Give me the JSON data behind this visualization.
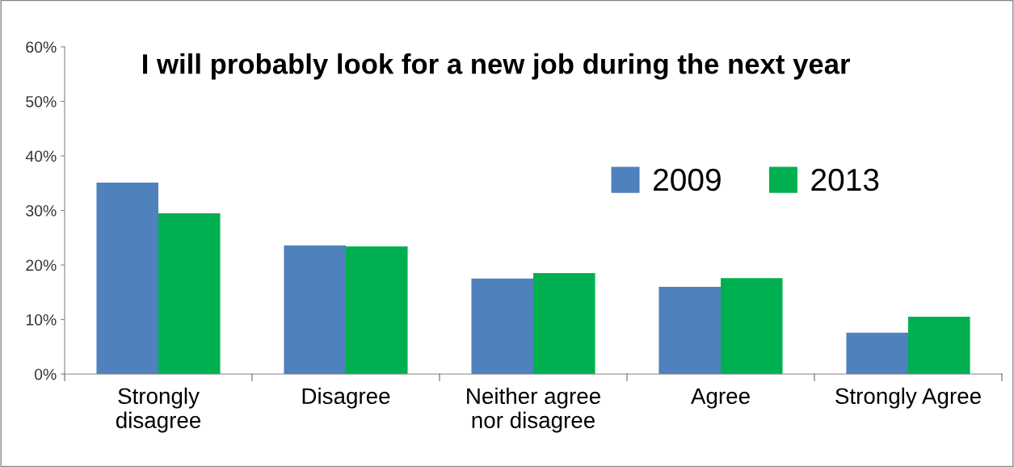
{
  "chart_data": {
    "type": "bar",
    "title": "I will probably look for a new job during the next year",
    "categories": [
      "Strongly\ndisagree",
      "Disagree",
      "Neither agree\nnor disagree",
      "Agree",
      "Strongly Agree"
    ],
    "series": [
      {
        "name": "2009",
        "color": "#4f81bd",
        "values": [
          35.1,
          23.6,
          17.5,
          16.0,
          7.6
        ]
      },
      {
        "name": "2013",
        "color": "#00b050",
        "values": [
          29.5,
          23.4,
          18.5,
          17.6,
          10.5
        ]
      }
    ],
    "ylim": [
      0,
      60
    ],
    "yticks": [
      {
        "value": 0,
        "label": "0%"
      },
      {
        "value": 10,
        "label": "10%"
      },
      {
        "value": 20,
        "label": "20%"
      },
      {
        "value": 30,
        "label": "30%"
      },
      {
        "value": 40,
        "label": "40%"
      },
      {
        "value": 50,
        "label": "50%"
      },
      {
        "value": 60,
        "label": "60%"
      }
    ],
    "grid": false,
    "legend": "top right"
  }
}
